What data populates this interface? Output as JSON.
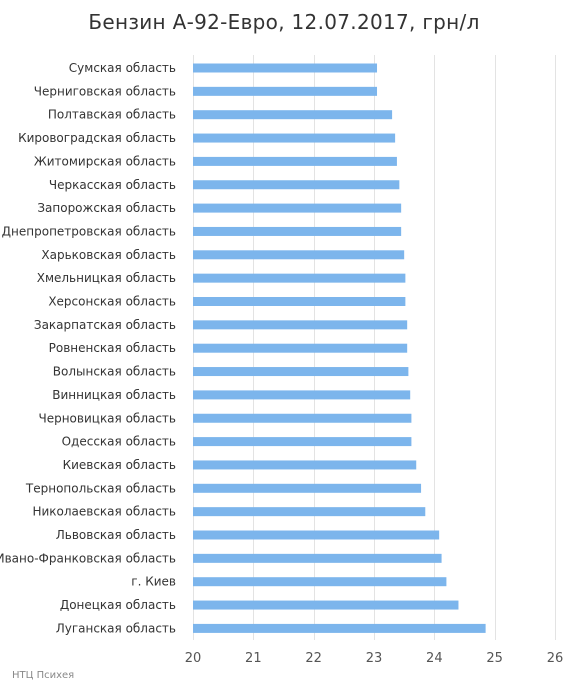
{
  "chart_data": {
    "type": "bar",
    "orientation": "horizontal",
    "title": "Бензин А-92-Евро, 12.07.2017, грн/л",
    "categories": [
      "Сумская область",
      "Черниговская область",
      "Полтавская область",
      "Кировоградская область",
      "Житомирская область",
      "Черкасская область",
      "Запорожская область",
      "Днепропетровская область",
      "Харьковская область",
      "Хмельницкая область",
      "Херсонская область",
      "Закарпатская область",
      "Ровненская область",
      "Волынская область",
      "Винницкая область",
      "Черновицкая область",
      "Одесская область",
      "Киевская область",
      "Тернопольская область",
      "Николаевская область",
      "Львовская область",
      "Ивано-Франковская область",
      "г. Киев",
      "Донецкая область",
      "Луганская область"
    ],
    "values": [
      23.05,
      23.05,
      23.3,
      23.35,
      23.38,
      23.42,
      23.45,
      23.45,
      23.5,
      23.52,
      23.52,
      23.55,
      23.55,
      23.57,
      23.6,
      23.62,
      23.62,
      23.7,
      23.78,
      23.85,
      24.08,
      24.12,
      24.2,
      24.4,
      24.85
    ],
    "xlim": [
      20,
      26
    ],
    "xticks": [
      20,
      21,
      22,
      23,
      24,
      25,
      26
    ],
    "grid": true,
    "bar_color": "#7cb5ec",
    "credit": "НТЦ Психея"
  }
}
